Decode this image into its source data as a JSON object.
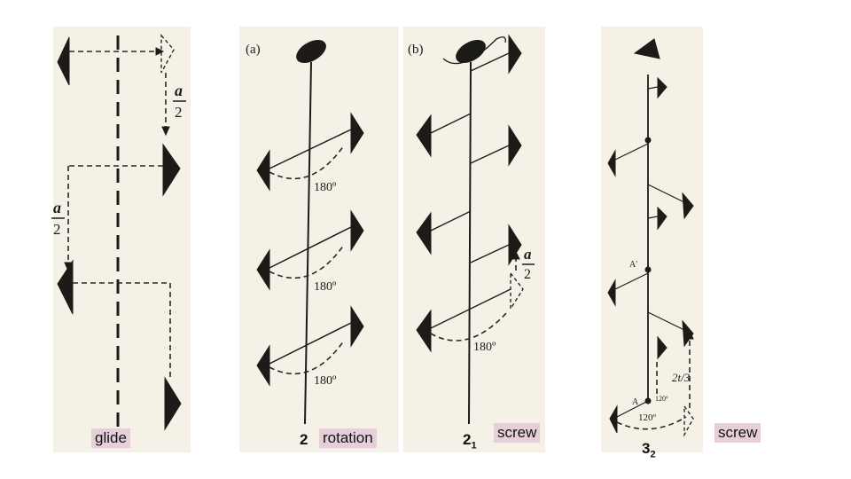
{
  "labels": {
    "glide": "glide",
    "rotation": "rotation",
    "screw_b": "screw",
    "screw_c": "screw",
    "sym_2": "2",
    "sym_21_base": "2",
    "sym_21_sub": "1",
    "sym_32_base": "3",
    "sym_32_sub": "2"
  },
  "figure": {
    "part_a": "(a)",
    "part_b": "(b)",
    "glide_a": "a",
    "glide_2": "2",
    "angle_180": "180º",
    "angle_120": "120º",
    "point_A": "A",
    "point_A_prime": "A'",
    "screw_a": "a",
    "screw_2": "2",
    "translation_2t3": "2t/3"
  },
  "colors": {
    "label_bg": "#e6cfd9",
    "paper": "#f6f1e7",
    "ink": "#1d1b18"
  }
}
